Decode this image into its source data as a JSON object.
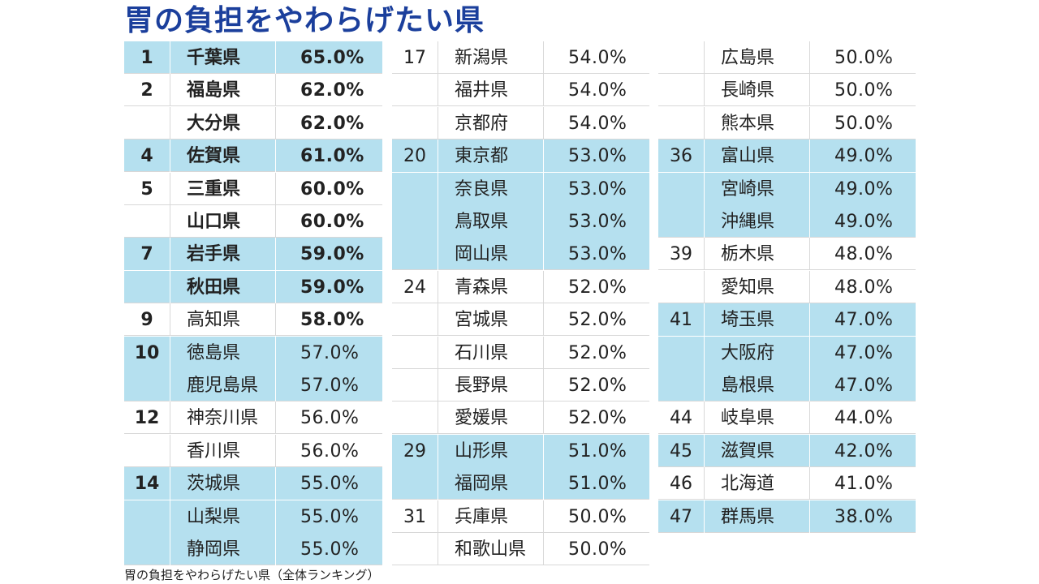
{
  "title": "胃の負担をやわらげたい県",
  "caption": "胃の負担をやわらげたい県（全体ランキング）",
  "colors": {
    "highlight": "#b5e0ef",
    "title": "#1b3f9c"
  },
  "columns": [
    {
      "rows": [
        {
          "rank": "1",
          "name": "千葉県",
          "pct": "65.0%",
          "hl": true,
          "bold_name": true,
          "bold_pct": true
        },
        {
          "rank": "2",
          "name": "福島県",
          "pct": "62.0%",
          "hl": false,
          "bold_name": true,
          "bold_pct": true
        },
        {
          "rank": "",
          "name": "大分県",
          "pct": "62.0%",
          "hl": false,
          "bold_name": true,
          "bold_pct": true
        },
        {
          "rank": "4",
          "name": "佐賀県",
          "pct": "61.0%",
          "hl": true,
          "bold_name": true,
          "bold_pct": true
        },
        {
          "rank": "5",
          "name": "三重県",
          "pct": "60.0%",
          "hl": false,
          "bold_name": true,
          "bold_pct": true
        },
        {
          "rank": "",
          "name": "山口県",
          "pct": "60.0%",
          "hl": false,
          "bold_name": true,
          "bold_pct": true
        },
        {
          "rank": "7",
          "name": "岩手県",
          "pct": "59.0%",
          "hl": true,
          "bold_name": true,
          "bold_pct": true
        },
        {
          "rank": "",
          "name": "秋田県",
          "pct": "59.0%",
          "hl": true,
          "bold_name": true,
          "bold_pct": true
        },
        {
          "rank": "9",
          "name": "高知県",
          "pct": "58.0%",
          "hl": false,
          "bold_name": false,
          "bold_pct": true
        },
        {
          "rank": "10",
          "name": "徳島県",
          "pct": "57.0%",
          "hl": true,
          "bold_name": false,
          "bold_pct": false
        },
        {
          "rank": "",
          "name": "鹿児島県",
          "pct": "57.0%",
          "hl": true,
          "bold_name": false,
          "bold_pct": false
        },
        {
          "rank": "12",
          "name": "神奈川県",
          "pct": "56.0%",
          "hl": false,
          "bold_name": false,
          "bold_pct": false
        },
        {
          "rank": "",
          "name": "香川県",
          "pct": "56.0%",
          "hl": false,
          "bold_name": false,
          "bold_pct": false
        },
        {
          "rank": "14",
          "name": "茨城県",
          "pct": "55.0%",
          "hl": true,
          "bold_name": false,
          "bold_pct": false
        },
        {
          "rank": "",
          "name": "山梨県",
          "pct": "55.0%",
          "hl": true,
          "bold_name": false,
          "bold_pct": false
        },
        {
          "rank": "",
          "name": "静岡県",
          "pct": "55.0%",
          "hl": true,
          "bold_name": false,
          "bold_pct": false
        }
      ]
    },
    {
      "rows": [
        {
          "rank": "17",
          "name": "新潟県",
          "pct": "54.0%",
          "hl": false
        },
        {
          "rank": "",
          "name": "福井県",
          "pct": "54.0%",
          "hl": false
        },
        {
          "rank": "",
          "name": "京都府",
          "pct": "54.0%",
          "hl": false
        },
        {
          "rank": "20",
          "name": "東京都",
          "pct": "53.0%",
          "hl": true
        },
        {
          "rank": "",
          "name": "奈良県",
          "pct": "53.0%",
          "hl": true
        },
        {
          "rank": "",
          "name": "鳥取県",
          "pct": "53.0%",
          "hl": true
        },
        {
          "rank": "",
          "name": "岡山県",
          "pct": "53.0%",
          "hl": true
        },
        {
          "rank": "24",
          "name": "青森県",
          "pct": "52.0%",
          "hl": false
        },
        {
          "rank": "",
          "name": "宮城県",
          "pct": "52.0%",
          "hl": false
        },
        {
          "rank": "",
          "name": "石川県",
          "pct": "52.0%",
          "hl": false
        },
        {
          "rank": "",
          "name": "長野県",
          "pct": "52.0%",
          "hl": false
        },
        {
          "rank": "",
          "name": "愛媛県",
          "pct": "52.0%",
          "hl": false
        },
        {
          "rank": "29",
          "name": "山形県",
          "pct": "51.0%",
          "hl": true
        },
        {
          "rank": "",
          "name": "福岡県",
          "pct": "51.0%",
          "hl": true
        },
        {
          "rank": "31",
          "name": "兵庫県",
          "pct": "50.0%",
          "hl": false
        },
        {
          "rank": "",
          "name": "和歌山県",
          "pct": "50.0%",
          "hl": false
        }
      ]
    },
    {
      "rows": [
        {
          "rank": "",
          "name": "広島県",
          "pct": "50.0%",
          "hl": false
        },
        {
          "rank": "",
          "name": "長崎県",
          "pct": "50.0%",
          "hl": false
        },
        {
          "rank": "",
          "name": "熊本県",
          "pct": "50.0%",
          "hl": false
        },
        {
          "rank": "36",
          "name": "富山県",
          "pct": "49.0%",
          "hl": true
        },
        {
          "rank": "",
          "name": "宮崎県",
          "pct": "49.0%",
          "hl": true
        },
        {
          "rank": "",
          "name": "沖縄県",
          "pct": "49.0%",
          "hl": true
        },
        {
          "rank": "39",
          "name": "栃木県",
          "pct": "48.0%",
          "hl": false
        },
        {
          "rank": "",
          "name": "愛知県",
          "pct": "48.0%",
          "hl": false
        },
        {
          "rank": "41",
          "name": "埼玉県",
          "pct": "47.0%",
          "hl": true
        },
        {
          "rank": "",
          "name": "大阪府",
          "pct": "47.0%",
          "hl": true
        },
        {
          "rank": "",
          "name": "島根県",
          "pct": "47.0%",
          "hl": true
        },
        {
          "rank": "44",
          "name": "岐阜県",
          "pct": "44.0%",
          "hl": false
        },
        {
          "rank": "45",
          "name": "滋賀県",
          "pct": "42.0%",
          "hl": true
        },
        {
          "rank": "46",
          "name": "北海道",
          "pct": "41.0%",
          "hl": false
        },
        {
          "rank": "47",
          "name": "群馬県",
          "pct": "38.0%",
          "hl": true
        }
      ]
    }
  ]
}
